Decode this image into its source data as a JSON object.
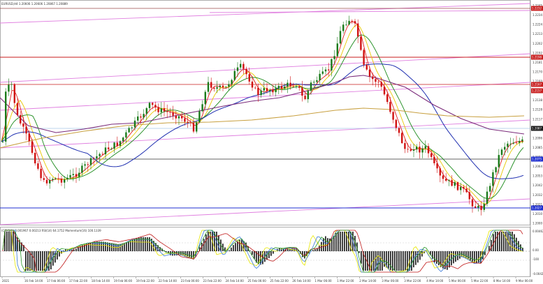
{
  "header": {
    "symbol_info": "EURUSD,H4  1.20606  1.20606  1.20867  1.20889"
  },
  "indicator_header": "(CCI(14)) 0.001967 0.00213  RSI(14) 64.1752  Momentum(16) 100.1339",
  "colors": {
    "bull": "#1a7a1a",
    "bear": "#d01010",
    "ma_red": "#e02020",
    "ma_yellow": "#e8c800",
    "ma_green": "#1a8a1a",
    "ma_blue": "#1f2fb0",
    "ma_purple": "#7a2a7a",
    "ma_tan": "#c8a040",
    "trend_pink": "#e080e0",
    "level_red": "#c81e1e",
    "level_blue": "#1f2fd0"
  },
  "price_scale": [
    "1.2245",
    "1.2234",
    "1.2224",
    "1.2213",
    "1.2202",
    "1.2192",
    "1.2181",
    "1.2170",
    "1.2160",
    "1.2149",
    "1.2138",
    "1.2128",
    "1.2117",
    "1.2106",
    "1.2096",
    "1.2085",
    "1.2074",
    "1.2064",
    "1.2053",
    "1.2042",
    "1.2032",
    "1.2021",
    "1.2010",
    "1.2000"
  ],
  "price_tags": [
    {
      "text": "1.2232",
      "color": "#c81e1e"
    },
    {
      "text": "1.2198",
      "color": "#c81e1e"
    },
    {
      "text": "1.2167",
      "color": "#c81e1e"
    },
    {
      "text": "1.2157",
      "color": "#c81e1e"
    },
    {
      "text": "1.2087",
      "color": "#1a1a1a"
    },
    {
      "text": "1.2075",
      "color": "#1f2fd0"
    },
    {
      "text": "1.2027",
      "color": "#1f2fd0"
    }
  ],
  "indicator_scale": [
    "0.00462",
    "0.00",
    "-100",
    "-0.00426"
  ],
  "time_axis": [
    "2021",
    "16 Feb 14:00",
    "17 Feb 06:00",
    "17 Feb 22:00",
    "18 Feb 14:00",
    "19 Feb 06:00",
    "19 Feb 22:00",
    "22 Feb 14:00",
    "23 Feb 06:00",
    "23 Feb 22:00",
    "24 Feb 14:00",
    "25 Feb 06:00",
    "25 Feb 22:00",
    "26 Feb 14:00",
    "1 Mar 06:00",
    "1 Mar 22:00",
    "2 Mar 14:00",
    "3 Mar 06:00",
    "3 Mar 22:00",
    "4 Mar 14:00",
    "5 Mar 06:00",
    "5 Mar 22:00",
    "8 Mar 14:00",
    "9 Mar 06:00"
  ]
}
